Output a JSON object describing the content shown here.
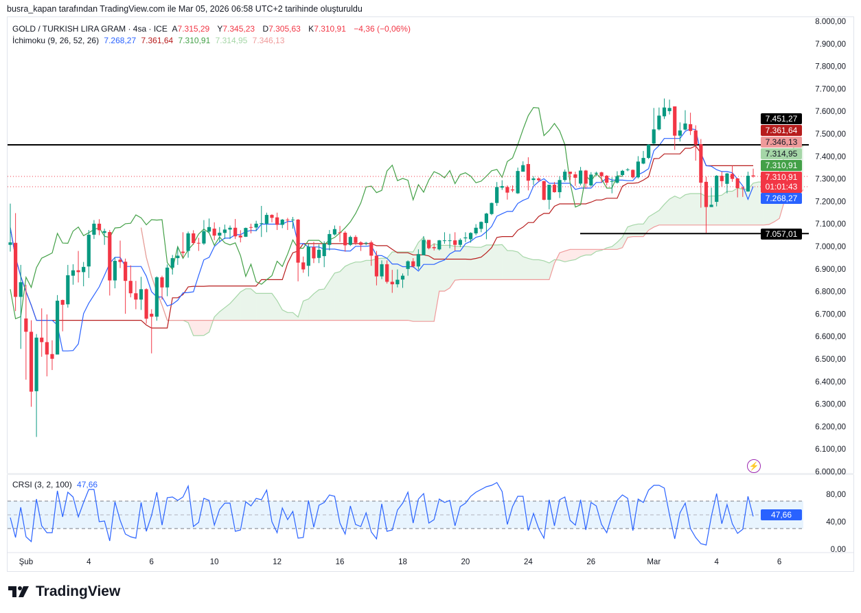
{
  "caption": "busra_kapan tarafından TradingView.com ile Mar 05, 2026 06:58 UTC+2 tarihinde oluşturuldu",
  "legend": {
    "symbol": "GOLD / TURKISH LIRA GRAM · 4sa · ICE",
    "open_prefix": "A",
    "open": "7.315,29",
    "high_prefix": "Y",
    "high": "7.345,23",
    "low_prefix": "D",
    "low": "7.305,63",
    "close_prefix": "K",
    "close": "7.310,91",
    "change": "−4,36 (−0,06%)",
    "ichimoku_label": "İchimoku (9, 26, 52, 26)",
    "ichimoku_values": [
      "7.268,27",
      "7.361,64",
      "7.310,91",
      "7.314,95",
      "7.346,13"
    ],
    "crsi_label": "CRSI (3, 2, 100)",
    "crsi_value": "47,66"
  },
  "price_labels": [
    {
      "text": "7.451,27",
      "color": "#000000"
    },
    {
      "text": "7.361,64",
      "color": "#b71c1c"
    },
    {
      "text": "7.346,13",
      "color": "#ef9a9a"
    },
    {
      "text": "7.314,95",
      "color": "#a5d6a7"
    },
    {
      "text": "7.310,91",
      "color": "#43a047"
    },
    {
      "text": "7.310,91",
      "sub": "01:01:43",
      "color": "#f23645"
    },
    {
      "text": "7.268,27",
      "color": "#2962ff"
    },
    {
      "text": "7.057,01",
      "color": "#000000"
    }
  ],
  "crsi_badge": "47,66",
  "logo_text": "TradingView",
  "colors": {
    "up": "#089981",
    "down": "#f23645",
    "tenkan": "#2962ff",
    "kijun": "#b71c1c",
    "chikou": "#43a047",
    "span_a": "#a5d6a7",
    "span_b": "#ef9a9a",
    "crsi": "#2962ff"
  },
  "chart_data": {
    "type": "candlestick",
    "interval": "4sa",
    "ylim": [
      6000,
      8000
    ],
    "y_ticks": [
      8000,
      7900,
      7800,
      7700,
      7600,
      7500,
      7400,
      7300,
      7200,
      7100,
      7000,
      6900,
      6800,
      6700,
      6600,
      6500,
      6400,
      6300,
      6200,
      6100,
      6000
    ],
    "y_tick_labels": [
      "8.000,00",
      "7.900,00",
      "7.800,00",
      "7.700,00",
      "7.600,00",
      "7.500,00",
      "7.400,00",
      "7.300,00",
      "7.200,00",
      "7.100,00",
      "7.000,00",
      "6.900,00",
      "6.800,00",
      "6.700,00",
      "6.600,00",
      "6.500,00",
      "6.400,00",
      "6.300,00",
      "6.200,00",
      "6.100,00",
      "6.000,00"
    ],
    "x_tick_labels": [
      "Şub",
      "4",
      "6",
      "10",
      "12",
      "16",
      "18",
      "20",
      "24",
      "26",
      "Mar",
      "4",
      "6"
    ],
    "horizontal_lines": [
      7451.27,
      7057.01
    ],
    "last_price": 7310.91,
    "ohlc": [
      [
        7007,
        7190,
        6977,
        7018
      ],
      [
        7016,
        7148,
        6713,
        6776
      ],
      [
        6776,
        6918,
        6545,
        6841
      ],
      [
        6680,
        6830,
        6408,
        6621
      ],
      [
        6621,
        6672,
        6288,
        6355
      ],
      [
        6357,
        6611,
        6154,
        6595
      ],
      [
        6595,
        6725,
        6510,
        6575
      ],
      [
        6575,
        6698,
        6423,
        6520
      ],
      [
        6522,
        6583,
        6451,
        6501
      ],
      [
        6520,
        6784,
        6520,
        6759
      ],
      [
        6762,
        6764,
        6623,
        6741
      ],
      [
        6743,
        6918,
        6728,
        6872
      ],
      [
        6870,
        6921,
        6830,
        6894
      ],
      [
        6894,
        6980,
        6840,
        6886
      ],
      [
        6886,
        6931,
        6823,
        6909
      ],
      [
        6911,
        7073,
        6860,
        7052
      ],
      [
        7052,
        7117,
        7033,
        7101
      ],
      [
        7101,
        7121,
        7050,
        7072
      ],
      [
        7060,
        7079,
        7007,
        7068
      ],
      [
        7064,
        7073,
        6782,
        6849
      ],
      [
        6849,
        6952,
        6814,
        6936
      ],
      [
        6941,
        7026,
        6904,
        6931
      ],
      [
        6932,
        6946,
        6701,
        6847
      ],
      [
        6847,
        6916,
        6774,
        6792
      ],
      [
        6792,
        6847,
        6721,
        6764
      ],
      [
        6764,
        6865,
        6718,
        6810
      ],
      [
        6810,
        6814,
        6657,
        6679
      ],
      [
        6701,
        6721,
        6525,
        6688
      ],
      [
        6688,
        6867,
        6670,
        6863
      ],
      [
        6863,
        6870,
        6764,
        6818
      ],
      [
        6818,
        6920,
        6779,
        6906
      ],
      [
        6906,
        6962,
        6875,
        6948
      ],
      [
        6948,
        6997,
        6918,
        6959
      ],
      [
        6977,
        7063,
        6952,
        6971
      ],
      [
        6980,
        7066,
        6950,
        7058
      ],
      [
        7058,
        7072,
        7007,
        7015
      ],
      [
        7016,
        7038,
        6980,
        7014
      ],
      [
        7013,
        7117,
        7007,
        7068
      ],
      [
        7066,
        7124,
        7058,
        7086
      ],
      [
        7079,
        7107,
        7028,
        7048
      ],
      [
        7048,
        7086,
        7018,
        7061
      ],
      [
        7060,
        7097,
        7033,
        7075
      ],
      [
        7075,
        7093,
        7033,
        7083
      ],
      [
        7083,
        7122,
        7033,
        7045
      ],
      [
        7048,
        7072,
        7018,
        7040
      ],
      [
        7043,
        7084,
        7042,
        7082
      ],
      [
        7086,
        7101,
        7058,
        7084
      ],
      [
        7084,
        7114,
        7068,
        7101
      ],
      [
        7101,
        7180,
        7042,
        7103
      ],
      [
        7101,
        7150,
        7063,
        7140
      ],
      [
        7140,
        7143,
        7107,
        7127
      ],
      [
        7129,
        7150,
        7073,
        7096
      ],
      [
        7096,
        7122,
        7081,
        7119
      ],
      [
        7119,
        7127,
        7073,
        7117
      ],
      [
        7117,
        7131,
        7079,
        7119
      ],
      [
        7119,
        7122,
        6845,
        6928
      ],
      [
        6929,
        6955,
        6883,
        6898
      ],
      [
        6914,
        7012,
        6867,
        6999
      ],
      [
        6997,
        7020,
        6926,
        6947
      ],
      [
        6949,
        7009,
        6926,
        6985
      ],
      [
        6957,
        7023,
        6908,
        7012
      ],
      [
        7007,
        7073,
        6982,
        7055
      ],
      [
        7053,
        7093,
        7048,
        7077
      ],
      [
        7063,
        7091,
        7020,
        7060
      ],
      [
        7061,
        7068,
        6977,
        7005
      ],
      [
        7007,
        7048,
        7002,
        7042
      ],
      [
        7042,
        7050,
        7007,
        7016
      ],
      [
        7018,
        7023,
        6980,
        7007
      ],
      [
        7013,
        7020,
        7005,
        7016
      ],
      [
        7018,
        7026,
        6914,
        6959
      ],
      [
        6959,
        6980,
        6827,
        6867
      ],
      [
        6867,
        6938,
        6855,
        6921
      ],
      [
        6921,
        6938,
        6835,
        6843
      ],
      [
        6843,
        6896,
        6794,
        6832
      ],
      [
        6832,
        6898,
        6818,
        6852
      ],
      [
        6853,
        6880,
        6816,
        6870
      ],
      [
        6900,
        6938,
        6870,
        6934
      ],
      [
        6934,
        6948,
        6906,
        6911
      ],
      [
        6911,
        6987,
        6897,
        6966
      ],
      [
        6961,
        7046,
        6961,
        7029
      ],
      [
        7029,
        7029,
        6987,
        6992
      ],
      [
        6997,
        7012,
        6982,
        6992
      ],
      [
        6987,
        7029,
        6982,
        7027
      ],
      [
        7025,
        7063,
        7012,
        7027
      ],
      [
        7025,
        7056,
        6992,
        7027
      ],
      [
        7027,
        7063,
        6982,
        7007
      ],
      [
        7007,
        7036,
        6997,
        7029
      ],
      [
        7036,
        7063,
        7019,
        7040
      ],
      [
        7032,
        7063,
        7017,
        7060
      ],
      [
        7058,
        7099,
        7050,
        7083
      ],
      [
        7078,
        7111,
        7063,
        7109
      ],
      [
        7104,
        7149,
        7032,
        7146
      ],
      [
        7144,
        7195,
        7139,
        7193
      ],
      [
        7193,
        7286,
        7180,
        7264
      ],
      [
        7261,
        7294,
        7251,
        7268
      ],
      [
        7264,
        7271,
        7208,
        7239
      ],
      [
        7253,
        7271,
        7241,
        7249
      ],
      [
        7236,
        7350,
        7233,
        7335
      ],
      [
        7332,
        7378,
        7332,
        7361
      ],
      [
        7366,
        7396,
        7249,
        7292
      ],
      [
        7295,
        7312,
        7273,
        7302
      ],
      [
        7302,
        7307,
        7287,
        7294
      ],
      [
        7290,
        7292,
        7205,
        7207
      ],
      [
        7207,
        7274,
        7165,
        7274
      ],
      [
        7274,
        7286,
        7239,
        7241
      ],
      [
        7241,
        7312,
        7215,
        7295
      ],
      [
        7295,
        7342,
        7287,
        7332
      ],
      [
        7332,
        7332,
        7294,
        7322
      ],
      [
        7320,
        7332,
        7269,
        7305
      ],
      [
        7279,
        7353,
        7271,
        7337
      ],
      [
        7337,
        7340,
        7256,
        7279
      ],
      [
        7271,
        7330,
        7266,
        7319
      ],
      [
        7324,
        7332,
        7312,
        7327
      ],
      [
        7329,
        7332,
        7283,
        7312
      ],
      [
        7314,
        7317,
        7271,
        7283
      ],
      [
        7287,
        7307,
        7236,
        7290
      ],
      [
        7283,
        7334,
        7279,
        7312
      ],
      [
        7317,
        7340,
        7312,
        7336
      ],
      [
        7340,
        7348,
        7334,
        7342
      ],
      [
        7340,
        7342,
        7302,
        7307
      ],
      [
        7307,
        7401,
        7302,
        7377
      ],
      [
        7368,
        7424,
        7365,
        7393
      ],
      [
        7393,
        7454,
        7388,
        7452
      ],
      [
        7457,
        7615,
        7454,
        7520
      ],
      [
        7520,
        7617,
        7515,
        7581
      ],
      [
        7578,
        7657,
        7566,
        7617
      ],
      [
        7601,
        7652,
        7586,
        7615
      ],
      [
        7622,
        7622,
        7429,
        7492
      ],
      [
        7492,
        7551,
        7466,
        7515
      ],
      [
        7519,
        7605,
        7515,
        7546
      ],
      [
        7543,
        7594,
        7495,
        7513
      ],
      [
        7515,
        7538,
        7381,
        7452
      ],
      [
        7454,
        7477,
        7172,
        7283
      ],
      [
        7287,
        7310,
        7060,
        7175
      ],
      [
        7175,
        7261,
        7175,
        7185
      ],
      [
        7198,
        7317,
        7178,
        7314
      ],
      [
        7314,
        7332,
        7266,
        7290
      ],
      [
        7278,
        7327,
        7236,
        7324
      ],
      [
        7322,
        7358,
        7287,
        7300
      ],
      [
        7302,
        7304,
        7218,
        7259
      ],
      [
        7261,
        7266,
        7220,
        7259
      ],
      [
        7244,
        7332,
        7243,
        7314
      ],
      [
        7315.29,
        7345.23,
        7305.63,
        7310.91
      ]
    ],
    "ichimoku": {
      "conversion": 9,
      "base": 26,
      "span_b": 52,
      "displacement": 26
    },
    "crsi": {
      "ylim": [
        0,
        100
      ],
      "bands": [
        70,
        50,
        30
      ],
      "y_tick_labels": [
        "80,00",
        "40,00",
        "0,00"
      ],
      "y_ticks": [
        80,
        40,
        0
      ],
      "values": [
        46,
        17,
        61,
        18,
        11,
        73,
        34,
        24,
        24,
        85,
        47,
        83,
        76,
        47,
        68,
        87,
        87,
        40,
        41,
        12,
        69,
        42,
        22,
        18,
        16,
        68,
        26,
        49,
        83,
        35,
        75,
        76,
        71,
        76,
        92,
        33,
        39,
        74,
        71,
        35,
        58,
        67,
        67,
        26,
        28,
        69,
        63,
        74,
        72,
        86,
        40,
        24,
        60,
        43,
        55,
        16,
        17,
        71,
        32,
        64,
        68,
        79,
        77,
        38,
        22,
        63,
        36,
        33,
        53,
        25,
        15,
        66,
        26,
        28,
        57,
        67,
        83,
        38,
        73,
        81,
        38,
        43,
        73,
        68,
        71,
        34,
        62,
        67,
        77,
        83,
        87,
        91,
        93,
        97,
        84,
        36,
        62,
        77,
        77,
        27,
        52,
        30,
        16,
        72,
        34,
        72,
        76,
        42,
        35,
        72,
        28,
        68,
        63,
        36,
        24,
        50,
        71,
        79,
        74,
        27,
        73,
        68,
        86,
        93,
        93,
        89,
        50,
        15,
        53,
        67,
        30,
        17,
        8,
        6,
        48,
        81,
        37,
        65,
        37,
        23,
        29,
        77,
        47.66
      ]
    }
  }
}
